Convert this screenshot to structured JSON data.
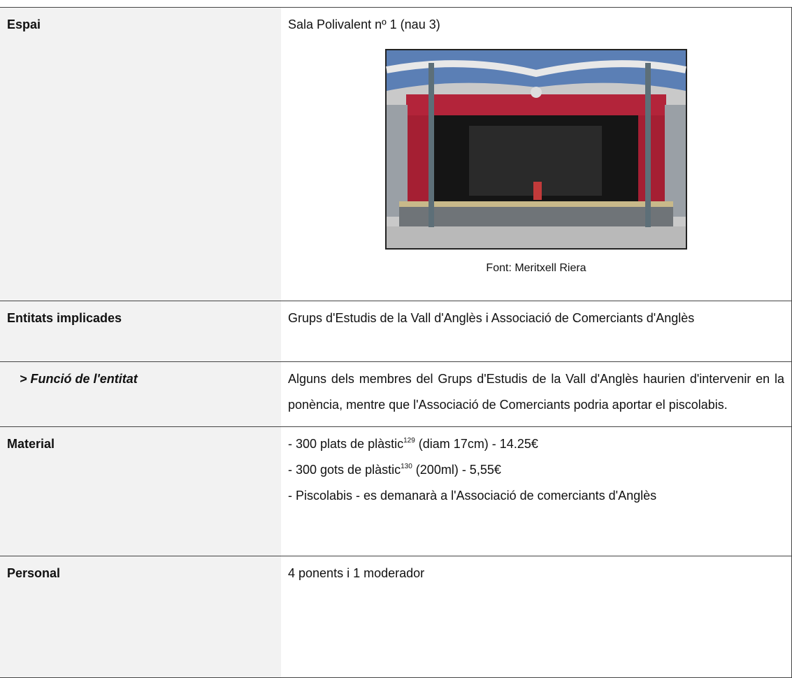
{
  "table": {
    "rows": [
      {
        "label": "Espai",
        "text": "Sala Polivalent nº 1 (nau 3)",
        "caption": "Font: Meritxell Riera"
      },
      {
        "label": "Entitats implicades",
        "text": "Grups d'Estudis de la Vall d'Anglès i Associació de Comerciants d'Anglès"
      },
      {
        "label": "> Funció de l'entitat",
        "text": "Alguns dels membres del Grups d'Estudis de la Vall d'Anglès haurien d'intervenir en la ponència, mentre que l'Associació de Comerciants podria aportar el piscolabis."
      },
      {
        "label": "Material",
        "items": [
          {
            "before": "- 300 plats de plàstic",
            "note": "129",
            "after": " (diam 17cm) - 14.25€"
          },
          {
            "before": "- 300 gots de plàstic",
            "note": "130",
            "after": " (200ml) - 5,55€"
          },
          {
            "before": "- Piscolabis - es demanarà a l'Associació de comerciants d'Anglès"
          }
        ]
      },
      {
        "label": "Personal",
        "text": "4 ponents i 1 moderador"
      }
    ]
  }
}
